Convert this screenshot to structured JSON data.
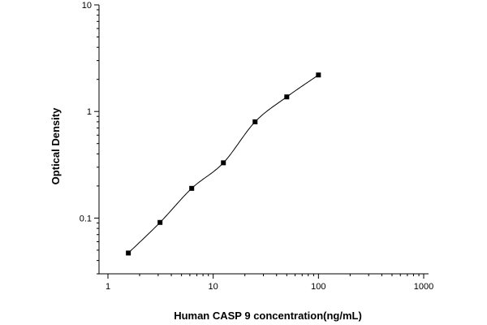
{
  "chart_data": {
    "type": "scatter",
    "xlabel": "Human CASP 9 concentration(ng/mL)",
    "ylabel": "Optical Density",
    "x_scale": "log",
    "y_scale": "log",
    "xlim": [
      1,
      1000
    ],
    "ylim": [
      0.03,
      10
    ],
    "x_ticks": [
      1,
      10,
      100,
      1000
    ],
    "x_tick_labels": [
      "1",
      "10",
      "100",
      "1000"
    ],
    "y_ticks": [
      0.1,
      1,
      10
    ],
    "y_tick_labels": [
      "0.1",
      "1",
      "10"
    ],
    "grid": false,
    "series": [
      {
        "marker": "square",
        "color": "#000000",
        "fit_curve": true,
        "x": [
          1.5625,
          3.125,
          6.25,
          12.5,
          25,
          50,
          100
        ],
        "y": [
          0.047,
          0.091,
          0.19,
          0.33,
          0.8,
          1.37,
          2.2
        ]
      }
    ]
  }
}
